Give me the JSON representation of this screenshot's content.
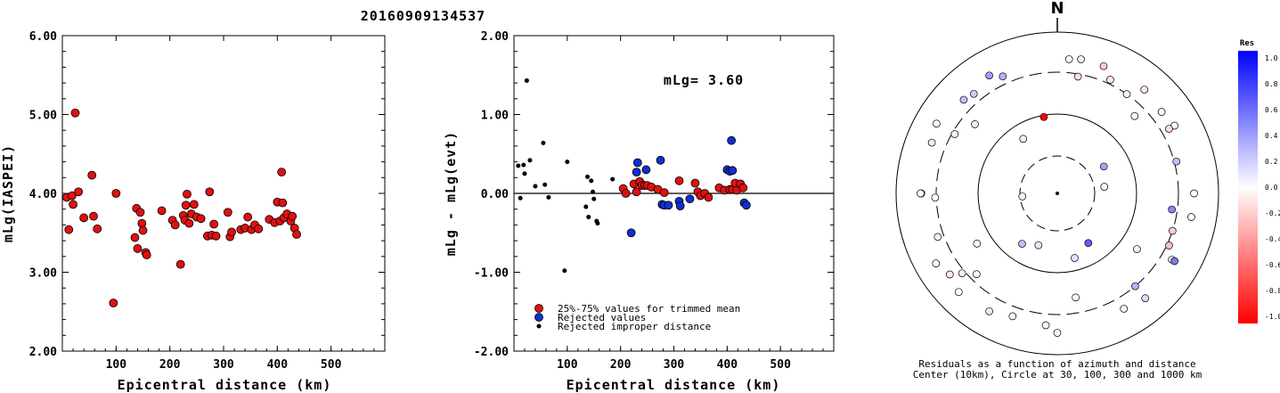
{
  "title": "20160909134537",
  "chart_data": [
    {
      "type": "scatter",
      "xlabel": "Epicentral distance (km)",
      "ylabel": "mLg(IASPEI)",
      "xlim": [
        0,
        600
      ],
      "ylim": [
        2.0,
        6.0
      ],
      "x_ticks": [
        "100",
        "200",
        "300",
        "400",
        "500"
      ],
      "y_ticks": [
        "2.00",
        "3.00",
        "4.00",
        "5.00",
        "6.00"
      ],
      "points": [
        [
          8,
          3.95
        ],
        [
          12,
          3.54
        ],
        [
          18,
          3.97
        ],
        [
          20,
          3.86
        ],
        [
          24,
          5.02
        ],
        [
          30,
          4.02
        ],
        [
          40,
          3.69
        ],
        [
          55,
          4.23
        ],
        [
          58,
          3.71
        ],
        [
          65,
          3.55
        ],
        [
          95,
          2.61
        ],
        [
          100,
          4.0
        ],
        [
          135,
          3.44
        ],
        [
          138,
          3.81
        ],
        [
          140,
          3.3
        ],
        [
          145,
          3.76
        ],
        [
          148,
          3.62
        ],
        [
          150,
          3.53
        ],
        [
          155,
          3.25
        ],
        [
          157,
          3.22
        ],
        [
          185,
          3.78
        ],
        [
          205,
          3.66
        ],
        [
          210,
          3.6
        ],
        [
          220,
          3.1
        ],
        [
          225,
          3.72
        ],
        [
          228,
          3.66
        ],
        [
          230,
          3.85
        ],
        [
          232,
          3.99
        ],
        [
          236,
          3.62
        ],
        [
          240,
          3.74
        ],
        [
          245,
          3.86
        ],
        [
          250,
          3.7
        ],
        [
          258,
          3.68
        ],
        [
          270,
          3.46
        ],
        [
          274,
          4.02
        ],
        [
          278,
          3.47
        ],
        [
          282,
          3.61
        ],
        [
          286,
          3.46
        ],
        [
          308,
          3.76
        ],
        [
          312,
          3.45
        ],
        [
          315,
          3.51
        ],
        [
          332,
          3.54
        ],
        [
          340,
          3.56
        ],
        [
          345,
          3.7
        ],
        [
          352,
          3.54
        ],
        [
          358,
          3.6
        ],
        [
          365,
          3.55
        ],
        [
          385,
          3.67
        ],
        [
          395,
          3.63
        ],
        [
          400,
          3.89
        ],
        [
          405,
          3.65
        ],
        [
          408,
          4.27
        ],
        [
          410,
          3.88
        ],
        [
          412,
          3.69
        ],
        [
          418,
          3.74
        ],
        [
          425,
          3.65
        ],
        [
          428,
          3.71
        ],
        [
          432,
          3.56
        ],
        [
          436,
          3.48
        ]
      ]
    },
    {
      "type": "scatter",
      "xlabel": "Epicentral distance (km)",
      "ylabel": "mLg - mLg(evt)",
      "annotation": "mLg= 3.60",
      "xlim": [
        0,
        600
      ],
      "ylim": [
        -2.0,
        2.0
      ],
      "x_ticks": [
        "100",
        "200",
        "300",
        "400",
        "500"
      ],
      "y_ticks": [
        "-2.00",
        "-1.00",
        "0.00",
        "1.00",
        "2.00"
      ],
      "legend_position": "bottom-left",
      "legend": [
        {
          "label": "25%-75% values for trimmed mean",
          "color": "#e01010"
        },
        {
          "label": "Rejected values",
          "color": "#1030d0"
        },
        {
          "label": "Rejected improper distance",
          "color": "#000000"
        }
      ],
      "series": [
        {
          "name": "25%-75% values for trimmed mean",
          "points": [
            [
              205,
              0.06
            ],
            [
              210,
              0.0
            ],
            [
              225,
              0.12
            ],
            [
              230,
              0.02
            ],
            [
              236,
              0.15
            ],
            [
              240,
              0.1
            ],
            [
              245,
              0.1
            ],
            [
              250,
              0.1
            ],
            [
              258,
              0.08
            ],
            [
              270,
              0.05
            ],
            [
              282,
              0.01
            ],
            [
              310,
              0.16
            ],
            [
              340,
              0.13
            ],
            [
              345,
              0.02
            ],
            [
              350,
              -0.03
            ],
            [
              358,
              0.0
            ],
            [
              365,
              -0.05
            ],
            [
              385,
              0.07
            ],
            [
              395,
              0.04
            ],
            [
              405,
              0.05
            ],
            [
              410,
              0.05
            ],
            [
              415,
              0.13
            ],
            [
              418,
              0.04
            ],
            [
              425,
              0.12
            ],
            [
              430,
              0.07
            ]
          ]
        },
        {
          "name": "Rejected values",
          "points": [
            [
              220,
              -0.5
            ],
            [
              230,
              0.27
            ],
            [
              232,
              0.39
            ],
            [
              248,
              0.3
            ],
            [
              275,
              0.42
            ],
            [
              278,
              -0.14
            ],
            [
              282,
              -0.15
            ],
            [
              290,
              -0.15
            ],
            [
              310,
              -0.1
            ],
            [
              312,
              -0.16
            ],
            [
              330,
              -0.07
            ],
            [
              400,
              0.3
            ],
            [
              405,
              0.28
            ],
            [
              408,
              0.67
            ],
            [
              410,
              0.29
            ],
            [
              432,
              -0.12
            ],
            [
              436,
              -0.15
            ]
          ]
        },
        {
          "name": "Rejected improper distance",
          "points": [
            [
              8,
              0.35
            ],
            [
              12,
              -0.06
            ],
            [
              18,
              0.36
            ],
            [
              20,
              0.25
            ],
            [
              24,
              1.43
            ],
            [
              30,
              0.42
            ],
            [
              40,
              0.09
            ],
            [
              55,
              0.64
            ],
            [
              58,
              0.11
            ],
            [
              65,
              -0.05
            ],
            [
              95,
              -0.98
            ],
            [
              100,
              0.4
            ],
            [
              135,
              -0.17
            ],
            [
              138,
              0.21
            ],
            [
              140,
              -0.3
            ],
            [
              145,
              0.16
            ],
            [
              148,
              0.02
            ],
            [
              150,
              -0.07
            ],
            [
              155,
              -0.35
            ],
            [
              157,
              -0.38
            ],
            [
              185,
              0.18
            ]
          ]
        }
      ]
    },
    {
      "type": "polar scatter",
      "north_label": "N",
      "caption_line1": "Residuals as a function of azimuth and distance",
      "caption_line2": "Center (10km), Circle at 30, 100, 300 and 1000 km",
      "colorbar": {
        "title": "Res",
        "ticks": [
          "1.0",
          "0.8",
          "0.6",
          "0.4",
          "0.2",
          "0.0",
          "-0.2",
          "-0.4",
          "-0.6",
          "-0.8",
          "-1.0"
        ],
        "max_color": "#0000ff",
        "mid_color": "#ffffff",
        "min_color": "#ff0000"
      },
      "rings_km": [
        30,
        100,
        300,
        1000
      ],
      "points": [
        {
          "az": 328,
          "dist": 65,
          "res": 0.06
        },
        {
          "az": 82,
          "dist": 40,
          "res": 0.02
        },
        {
          "az": 265,
          "dist": 28,
          "res": 0.04
        },
        {
          "az": 148,
          "dist": 55,
          "res": 0.64
        },
        {
          "az": 200,
          "dist": 50,
          "res": 0.09
        },
        {
          "az": 165,
          "dist": 70,
          "res": 0.11
        },
        {
          "az": 350,
          "dist": 95,
          "res": -0.98
        },
        {
          "az": 60,
          "dist": 48,
          "res": 0.35
        },
        {
          "az": 215,
          "dist": 60,
          "res": 0.25
        },
        {
          "az": 238,
          "dist": 150,
          "res": 0.02
        },
        {
          "az": 170,
          "dist": 200,
          "res": 0.0
        },
        {
          "az": 125,
          "dist": 160,
          "res": 0.05
        },
        {
          "az": 98,
          "dist": 260,
          "res": 0.48
        },
        {
          "az": 225,
          "dist": 250,
          "res": 0.02
        },
        {
          "az": 45,
          "dist": 220,
          "res": -0.05
        },
        {
          "az": 310,
          "dist": 210,
          "res": 0.07
        },
        {
          "az": 268,
          "dist": 310,
          "res": 0.0
        },
        {
          "az": 230,
          "dist": 330,
          "res": -0.08
        },
        {
          "az": 300,
          "dist": 280,
          "res": 0.05
        },
        {
          "az": 140,
          "dist": 300,
          "res": 0.3
        },
        {
          "az": 10,
          "dist": 280,
          "res": -0.12
        },
        {
          "az": 25,
          "dist": 340,
          "res": -0.1
        },
        {
          "az": 35,
          "dist": 300,
          "res": 0.02
        },
        {
          "az": 75,
          "dist": 320,
          "res": 0.26
        },
        {
          "az": 115,
          "dist": 320,
          "res": -0.25
        },
        {
          "az": 108,
          "dist": 300,
          "res": -0.19
        },
        {
          "az": 335,
          "dist": 380,
          "res": 0.3
        },
        {
          "az": 320,
          "dist": 390,
          "res": 0.2
        },
        {
          "az": 250,
          "dist": 360,
          "res": 0.05
        },
        {
          "az": 120,
          "dist": 420,
          "res": 0.04
        },
        {
          "az": 200,
          "dist": 400,
          "res": 0.02
        },
        {
          "az": 150,
          "dist": 430,
          "res": 0.05
        },
        {
          "az": 5,
          "dist": 450,
          "res": 0.02
        },
        {
          "az": 270,
          "dist": 470,
          "res": 0.0
        },
        {
          "az": 292,
          "dist": 460,
          "res": 0.06
        },
        {
          "az": 52,
          "dist": 420,
          "res": 0.0
        },
        {
          "az": 60,
          "dist": 460,
          "res": 0.02
        },
        {
          "az": 60,
          "dist": 380,
          "res": -0.15
        },
        {
          "az": 233,
          "dist": 450,
          "res": -0.1
        },
        {
          "az": 185,
          "dist": 420,
          "res": 0.02
        },
        {
          "az": 10,
          "dist": 470,
          "res": 0.07
        },
        {
          "az": 100,
          "dist": 470,
          "res": 0.01
        },
        {
          "az": 120,
          "dist": 460,
          "res": 0.52
        },
        {
          "az": 210,
          "dist": 470,
          "res": 0.08
        },
        {
          "az": 180,
          "dist": 520,
          "res": 0.03
        },
        {
          "az": 140,
          "dist": 480,
          "res": 0.15
        },
        {
          "az": 20,
          "dist": 460,
          "res": -0.2
        },
        {
          "az": 40,
          "dist": 460,
          "res": -0.1
        },
        {
          "az": 90,
          "dist": 480,
          "res": 0.0
        },
        {
          "az": 225,
          "dist": 520,
          "res": 0.0
        },
        {
          "az": 315,
          "dist": 420,
          "res": 0.25
        },
        {
          "az": 330,
          "dist": 470,
          "res": 0.38
        },
        {
          "az": 240,
          "dist": 530,
          "res": 0.0
        },
        {
          "az": 300,
          "dist": 520,
          "res": -0.01
        },
        {
          "az": 270,
          "dist": 480,
          "res": 0.0
        }
      ]
    }
  ]
}
